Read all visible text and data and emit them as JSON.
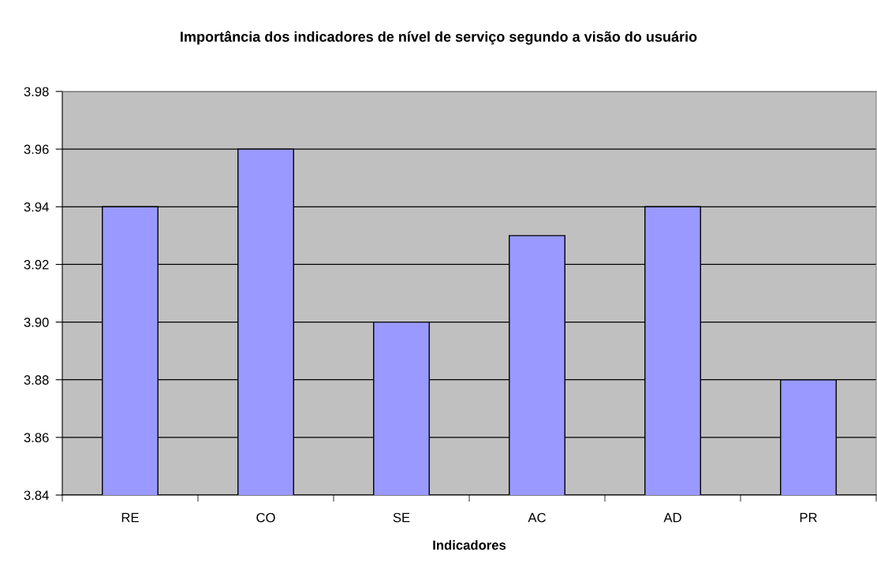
{
  "chart_data": {
    "type": "bar",
    "title": "Importância dos indicadores de nível de serviço segundo a visão do usuário",
    "xlabel": "Indicadores",
    "categories": [
      "RE",
      "CO",
      "SE",
      "AC",
      "AD",
      "PR"
    ],
    "values": [
      3.94,
      3.96,
      3.9,
      3.93,
      3.94,
      3.88
    ],
    "color": "#9999ff",
    "ylim": [
      3.84,
      3.98
    ],
    "yticks": [
      3.84,
      3.86,
      3.88,
      {
        "value": 3.9,
        "label": "3.90"
      },
      3.92,
      3.94,
      3.96,
      3.98
    ],
    "grid": "y"
  }
}
